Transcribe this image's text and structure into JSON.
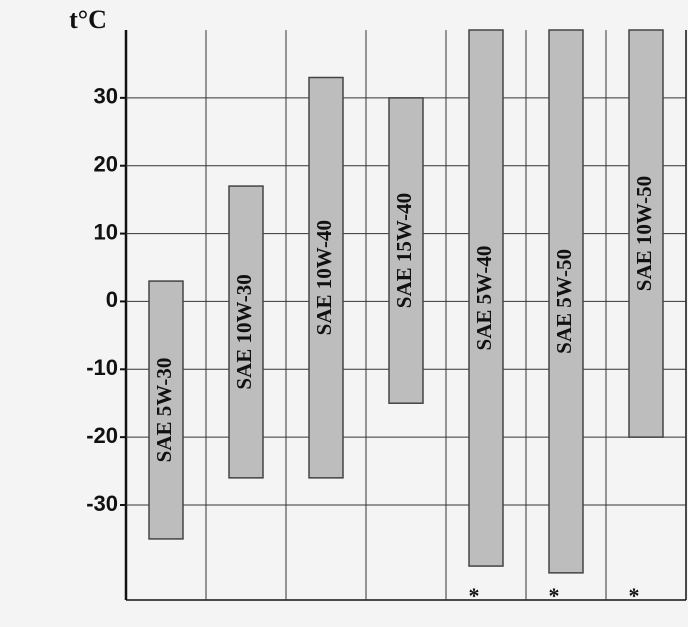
{
  "chart_data": {
    "type": "bar",
    "y_label": "t°C",
    "categories": [
      "SAE 5W-30",
      "SAE 10W-30",
      "SAE 10W-40",
      "SAE 15W-40",
      "SAE 5W-40",
      "SAE 5W-50",
      "SAE 10W-50"
    ],
    "series": [
      {
        "color": "#bdbdbd",
        "low": [
          -35,
          -26,
          -26,
          -15,
          -39,
          -40,
          -20
        ],
        "high": [
          3,
          17,
          33,
          30,
          40,
          40,
          40
        ]
      }
    ],
    "ylim": [
      -44,
      40
    ],
    "yticks": [
      -30,
      -20,
      -10,
      0,
      10,
      20,
      30
    ],
    "grid": true,
    "annotations": [
      {
        "category": "SAE 5W-40",
        "text": "*"
      },
      {
        "category": "SAE 5W-50",
        "text": "*"
      },
      {
        "category": "SAE 10W-50",
        "text": "*"
      }
    ]
  }
}
